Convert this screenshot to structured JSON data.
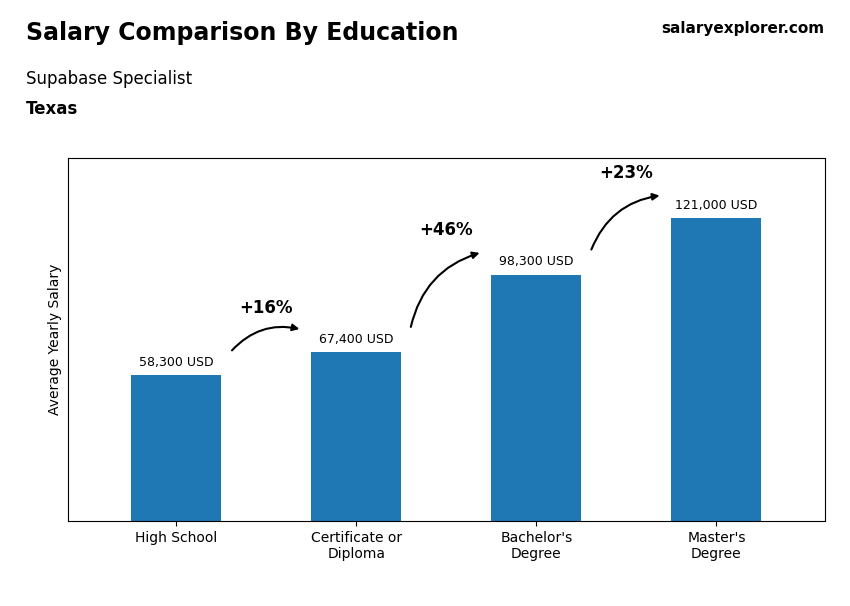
{
  "chart_data": {
    "type": "bar",
    "title": "Salary Comparison By Education",
    "subtitle": "Supabase Specialist",
    "location": "Texas",
    "brand": "salaryexplorer.com",
    "y_label": "Average Yearly Salary",
    "categories": [
      "High School",
      "Certificate or\nDiploma",
      "Bachelor's\nDegree",
      "Master's\nDegree"
    ],
    "values": [
      58300,
      67400,
      98300,
      121000
    ],
    "value_labels": [
      "58,300 USD",
      "67,400 USD",
      "98,300 USD",
      "121,000 USD"
    ],
    "data_labels": true,
    "annotations": [
      "+16%",
      "+46%",
      "+23%"
    ],
    "ylim": [
      0,
      145000
    ],
    "yticks": [],
    "tick_labels": "x"
  }
}
